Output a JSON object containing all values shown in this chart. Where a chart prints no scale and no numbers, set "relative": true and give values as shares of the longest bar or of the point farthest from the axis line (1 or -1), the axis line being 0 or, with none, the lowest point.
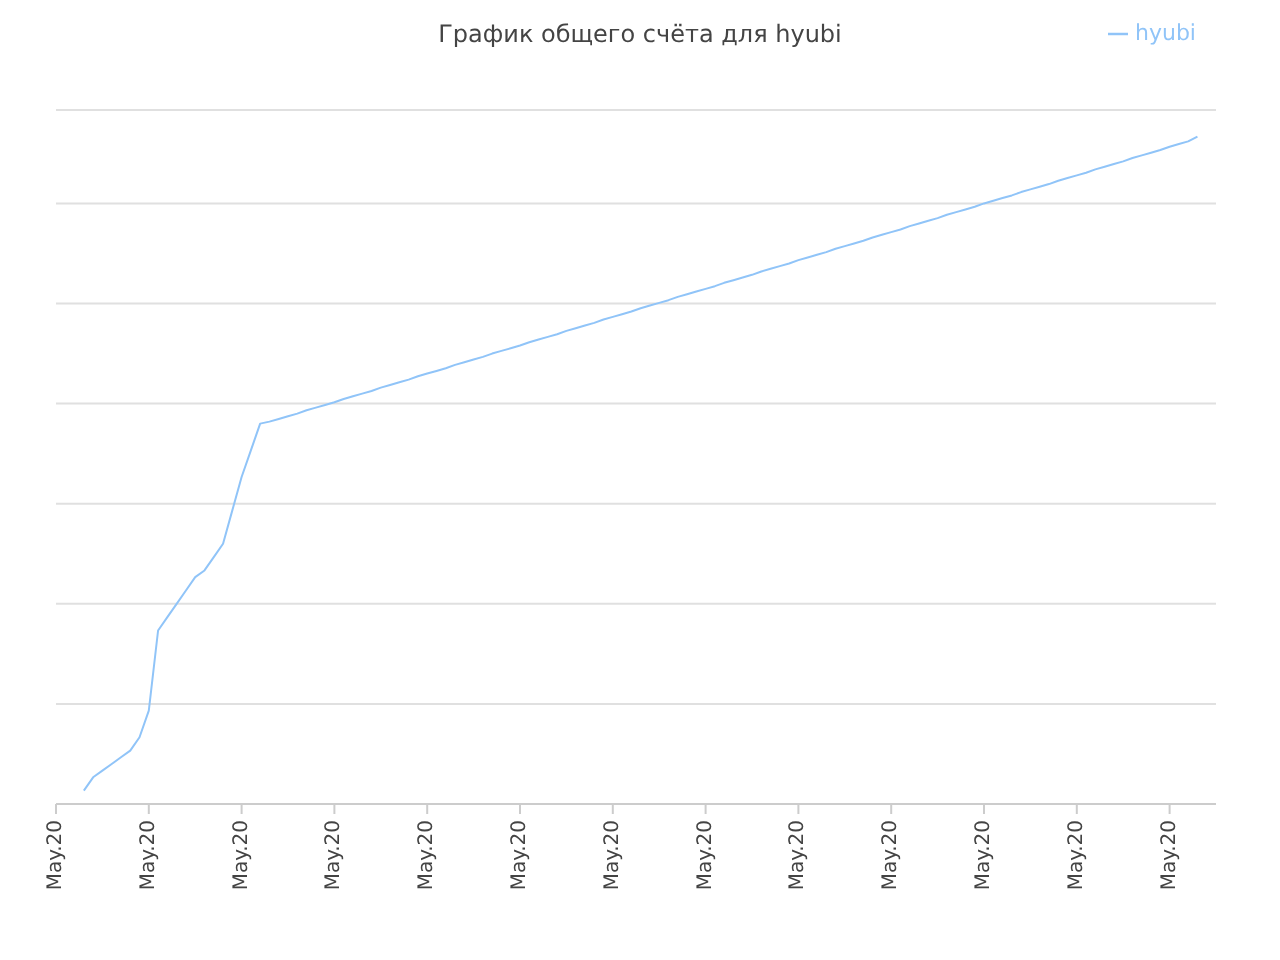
{
  "chart_data": {
    "type": "line",
    "title": "График общего счёта для hyubi",
    "relative": true,
    "categories": [
      "May.20",
      null,
      null,
      null,
      null,
      null,
      null,
      null,
      null,
      null,
      "May.20",
      null,
      null,
      null,
      null,
      null,
      null,
      null,
      null,
      null,
      "May.20",
      null,
      null,
      null,
      null,
      null,
      null,
      null,
      null,
      null,
      "May.20",
      null,
      null,
      null,
      null,
      null,
      null,
      null,
      null,
      null,
      "May.20",
      null,
      null,
      null,
      null,
      null,
      null,
      null,
      null,
      null,
      "May.20",
      null,
      null,
      null,
      null,
      null,
      null,
      null,
      null,
      null,
      "May.20",
      null,
      null,
      null,
      null,
      null,
      null,
      null,
      null,
      null,
      "May.20",
      null,
      null,
      null,
      null,
      null,
      null,
      null,
      null,
      null,
      "May.20",
      null,
      null,
      null,
      null,
      null,
      null,
      null,
      null,
      null,
      "May.20",
      null,
      null,
      null,
      null,
      null,
      null,
      null,
      null,
      null,
      "May.20",
      null,
      null,
      null,
      null,
      null,
      null,
      null,
      null,
      null,
      "May.20",
      null,
      null,
      null,
      null,
      null,
      null,
      null,
      null,
      null,
      "May.20",
      null,
      null,
      null,
      null,
      null
    ],
    "series": [
      {
        "name": "hyubi",
        "color": "#90c4f8",
        "values": [
          null,
          null,
          null,
          0.02,
          0.04,
          0.05,
          0.06,
          0.07,
          0.08,
          0.1,
          0.14,
          0.26,
          0.28,
          0.3,
          0.32,
          0.34,
          0.35,
          0.37,
          0.39,
          0.44,
          0.49,
          0.53,
          0.57,
          0.573,
          0.577,
          0.581,
          0.585,
          0.59,
          0.594,
          0.598,
          0.602,
          0.607,
          0.611,
          0.615,
          0.619,
          0.624,
          0.628,
          0.632,
          0.636,
          0.641,
          0.645,
          0.649,
          0.653,
          0.658,
          0.662,
          0.666,
          0.67,
          0.675,
          0.679,
          0.683,
          0.687,
          0.692,
          0.696,
          0.7,
          0.704,
          0.709,
          0.713,
          0.717,
          0.721,
          0.726,
          0.73,
          0.734,
          0.738,
          0.743,
          0.747,
          0.751,
          0.755,
          0.76,
          0.764,
          0.768,
          0.772,
          0.776,
          0.781,
          0.785,
          0.789,
          0.793,
          0.798,
          0.802,
          0.806,
          0.81,
          0.815,
          0.819,
          0.823,
          0.827,
          0.832,
          0.836,
          0.84,
          0.844,
          0.849,
          0.853,
          0.857,
          0.861,
          0.866,
          0.87,
          0.874,
          0.878,
          0.883,
          0.887,
          0.891,
          0.895,
          0.9,
          0.904,
          0.908,
          0.912,
          0.917,
          0.921,
          0.925,
          0.929,
          0.934,
          0.938,
          0.942,
          0.946,
          0.951,
          0.955,
          0.959,
          0.963,
          0.968,
          0.972,
          0.976,
          0.98,
          0.985,
          0.989,
          0.993,
          1,
          null,
          null
        ]
      }
    ],
    "grid": "y",
    "legend": "top right",
    "marker": "none",
    "line_style": "solid"
  }
}
